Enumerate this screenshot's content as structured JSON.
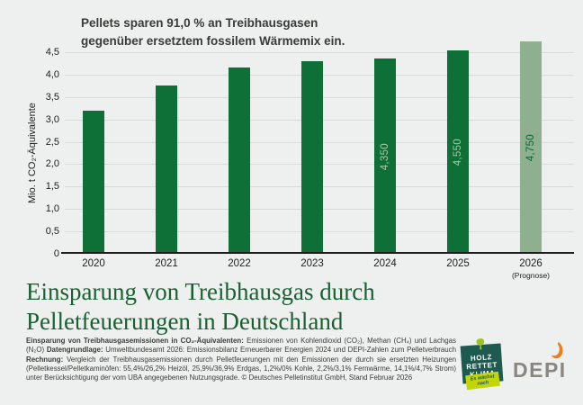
{
  "page": {
    "background": "#edf0ee"
  },
  "chart_data": {
    "type": "bar",
    "title": "Pellets sparen 91,0 % an Treibhausgasen gegenüber ersetztem fossilem Wärmemix ein.",
    "title_line1": "Pellets sparen 91,0 % an Treibhausgasen",
    "title_line2": "gegenüber ersetztem fossilem Wärmemix ein.",
    "ylabel": "Mio. t CO₂-Äquivalente",
    "xlabel": "",
    "ylim": [
      0,
      4.5
    ],
    "grid": true,
    "legend": "none",
    "categories": [
      "2020",
      "2021",
      "2022",
      "2023",
      "2024",
      "2025",
      "2026"
    ],
    "category_notes": [
      "",
      "",
      "",
      "",
      "",
      "",
      "(Prognose)"
    ],
    "values": [
      3.2,
      3.75,
      4.15,
      4.3,
      4.35,
      4.55,
      4.75
    ],
    "bar_labels": [
      "",
      "",
      "",
      "",
      "4,350",
      "4,550",
      "4,750"
    ],
    "yticks": [
      {
        "value": 0,
        "label": "0"
      },
      {
        "value": 0.5,
        "label": "0,5"
      },
      {
        "value": 1,
        "label": "1,0"
      },
      {
        "value": 1.5,
        "label": "1,5"
      },
      {
        "value": 2,
        "label": "2,0"
      },
      {
        "value": 2.5,
        "label": "2,5"
      },
      {
        "value": 3,
        "label": "3,0"
      },
      {
        "value": 3.5,
        "label": "3,5"
      },
      {
        "value": 4,
        "label": "4,0"
      },
      {
        "value": 4.5,
        "label": "4,5"
      }
    ],
    "forecast_index": 6,
    "colors": {
      "bar": "#0e7036",
      "bar_forecast": "#8fb08e",
      "bar_label_on_dark": "#a7c6a5",
      "bar_label_on_light": "#0e6434",
      "gridline": "#d8dcd8",
      "axis": "#1e1e1c"
    }
  },
  "title": {
    "line1": "Einsparung von Treibhausgas durch",
    "line2": "Pelletfeuerungen in Deutschland",
    "color": "#1a6031"
  },
  "footnote": {
    "seg1_bold": "Einsparung von Treibhausgasemissionen in CO₂-Äquivalenten:",
    "seg1_text": " Emissionen von Kohlendioxid (CO₂), Methan (CH₄) und Lachgas (N₂O) ",
    "seg2_bold": "Datengrundlage:",
    "seg2_text": " Umweltbundesamt 2026: Emissionsbilanz Erneuerbarer Energien 2024 und DEPI-Zahlen zum Pelletverbrauch ",
    "seg3_bold": "Rechnung:",
    "seg3_text": " Vergleich der Treibhausgasemissionen durch Pelletfeuerungen mit den Emissionen der durch sie ersetzten Heizungen (Pelletkessel/Pelletkaminöfen: 55,4%/26,2% Heizöl, 25,9%/36,9% Erdgas, 1,2%/0% Kohle, 2,2%/3,1% Fernwärme, 14,1%/4,7% Strom) unter Berücksichtigung der vom UBA angegebenen Nutzungsgrade. © Deutsches Pelletinstitut GmbH, Stand Februar 2026"
  },
  "logos": {
    "holz_rettet_klima": {
      "line1": "HOLZ",
      "line2": "RETTET",
      "line3": "KLIMA",
      "banner_line1": "Es wächst",
      "banner_line2": "nach",
      "colors": {
        "square": "#1e5a50",
        "banner": "#c3d407",
        "tree": "#9cc320",
        "text": "#ffffff"
      }
    },
    "depi": {
      "text": "DEPI",
      "colors": {
        "text": "#8b8780",
        "flame": "#e8801e"
      }
    }
  }
}
